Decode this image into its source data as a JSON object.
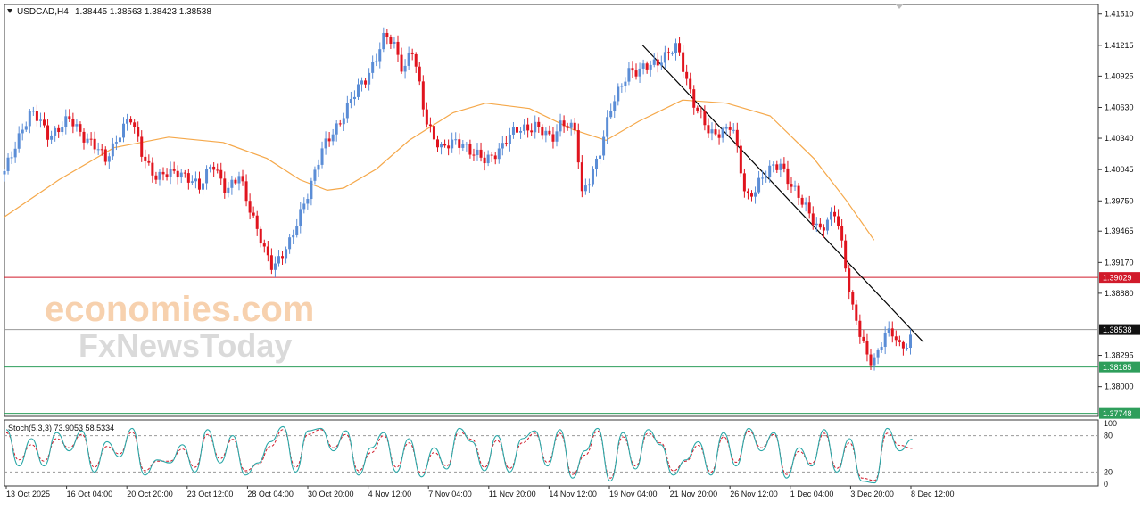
{
  "header": {
    "symbol": "USDCAD,H4",
    "ohlc": "1.38445 1.38563 1.38423 1.38538",
    "menu_icon": "triangle-down-icon"
  },
  "watermark": {
    "brand_top": "economies.com",
    "brand_bottom": "FxNewsToday"
  },
  "colors": {
    "bull": "#5b8dd6",
    "bear": "#e0141e",
    "ma": "#f5a84a",
    "trendline": "#000000",
    "resistance": "#d11a2a",
    "support": "#2e9e5b",
    "bid": "#9a9a9a",
    "stoch_main": "#2aa7a7",
    "stoch_signal": "#d11a2a"
  },
  "chart_data": [
    {
      "type": "candlestick",
      "title": "USDCAD,H4",
      "ylim": [
        1.3772,
        1.416
      ],
      "y_ticks": [
        "1.41510",
        "1.41215",
        "1.40925",
        "1.40630",
        "1.40340",
        "1.40045",
        "1.39750",
        "1.39465",
        "1.39170",
        "1.38880",
        "1.38295",
        "1.38000"
      ],
      "x_ticks": [
        "13 Oct 2025",
        "16 Oct 04:00",
        "20 Oct 20:00",
        "23 Oct 12:00",
        "28 Oct 04:00",
        "30 Oct 20:00",
        "4 Nov 12:00",
        "7 Nov 04:00",
        "11 Nov 20:00",
        "14 Nov 12:00",
        "19 Nov 04:00",
        "21 Nov 20:00",
        "26 Nov 12:00",
        "1 Dec 04:00",
        "3 Dec 20:00",
        "8 Dec 12:00"
      ],
      "price_levels": [
        {
          "value": 1.39029,
          "label": "1.39029",
          "kind": "resistance"
        },
        {
          "value": 1.38538,
          "label": "1.38538",
          "kind": "current"
        },
        {
          "value": 1.38185,
          "label": "1.38185",
          "kind": "support"
        },
        {
          "value": 1.37748,
          "label": "1.37748",
          "kind": "support"
        }
      ],
      "trendline": [
        [
          0.583,
          1.4122
        ],
        [
          0.84,
          1.3842
        ]
      ],
      "price_path": [
        [
          0.0,
          1.4
        ],
        [
          0.016,
          1.4045
        ],
        [
          0.025,
          1.4058
        ],
        [
          0.04,
          1.4038
        ],
        [
          0.06,
          1.405
        ],
        [
          0.08,
          1.403
        ],
        [
          0.092,
          1.4012
        ],
        [
          0.105,
          1.404
        ],
        [
          0.115,
          1.4052
        ],
        [
          0.125,
          1.4022
        ],
        [
          0.14,
          1.3995
        ],
        [
          0.16,
          1.4005
        ],
        [
          0.178,
          1.3985
        ],
        [
          0.19,
          1.4015
        ],
        [
          0.203,
          1.398
        ],
        [
          0.215,
          1.4002
        ],
        [
          0.228,
          1.3955
        ],
        [
          0.237,
          1.3928
        ],
        [
          0.245,
          1.3915
        ],
        [
          0.262,
          1.3935
        ],
        [
          0.275,
          1.3978
        ],
        [
          0.29,
          1.402
        ],
        [
          0.31,
          1.4058
        ],
        [
          0.33,
          1.409
        ],
        [
          0.348,
          1.413
        ],
        [
          0.358,
          1.4118
        ],
        [
          0.365,
          1.4098
        ],
        [
          0.372,
          1.4122
        ],
        [
          0.385,
          1.405
        ],
        [
          0.4,
          1.4025
        ],
        [
          0.42,
          1.403
        ],
        [
          0.44,
          1.401
        ],
        [
          0.46,
          1.4035
        ],
        [
          0.485,
          1.4048
        ],
        [
          0.5,
          1.403
        ],
        [
          0.51,
          1.4053
        ],
        [
          0.522,
          1.404
        ],
        [
          0.528,
          1.3978
        ],
        [
          0.545,
          1.4025
        ],
        [
          0.555,
          1.4062
        ],
        [
          0.57,
          1.41
        ],
        [
          0.58,
          1.4095
        ],
        [
          0.6,
          1.411
        ],
        [
          0.615,
          1.4118
        ],
        [
          0.63,
          1.407
        ],
        [
          0.645,
          1.4035
        ],
        [
          0.665,
          1.4048
        ],
        [
          0.678,
          1.3975
        ],
        [
          0.69,
          1.3995
        ],
        [
          0.71,
          1.401
        ],
        [
          0.73,
          1.397
        ],
        [
          0.745,
          1.395
        ],
        [
          0.76,
          1.3962
        ],
        [
          0.768,
          1.392
        ],
        [
          0.775,
          1.3878
        ],
        [
          0.79,
          1.382
        ],
        [
          0.798,
          1.383
        ],
        [
          0.805,
          1.3855
        ],
        [
          0.815,
          1.3845
        ],
        [
          0.82,
          1.383
        ],
        [
          0.83,
          1.3852
        ]
      ],
      "ma_path": [
        [
          0.0,
          1.396
        ],
        [
          0.05,
          1.3995
        ],
        [
          0.1,
          1.4025
        ],
        [
          0.15,
          1.4035
        ],
        [
          0.2,
          1.403
        ],
        [
          0.24,
          1.4015
        ],
        [
          0.27,
          1.3995
        ],
        [
          0.295,
          1.3985
        ],
        [
          0.31,
          1.3987
        ],
        [
          0.34,
          1.4005
        ],
        [
          0.37,
          1.4032
        ],
        [
          0.41,
          1.4058
        ],
        [
          0.44,
          1.4067
        ],
        [
          0.48,
          1.4062
        ],
        [
          0.52,
          1.4042
        ],
        [
          0.55,
          1.4032
        ],
        [
          0.58,
          1.405
        ],
        [
          0.62,
          1.407
        ],
        [
          0.66,
          1.4067
        ],
        [
          0.7,
          1.4055
        ],
        [
          0.74,
          1.4015
        ],
        [
          0.77,
          1.3975
        ],
        [
          0.795,
          1.3938
        ]
      ]
    },
    {
      "type": "line",
      "title": "Stoch(5,3,3) 73.9053 58.5334",
      "ylim": [
        0,
        100
      ],
      "y_ticks": [
        "100",
        "80",
        "20",
        "0"
      ],
      "levels": [
        80,
        20
      ],
      "series": [
        {
          "name": "Stoch main",
          "values": [
            90,
            30,
            75,
            30,
            85,
            55,
            88,
            20,
            70,
            45,
            92,
            15,
            40,
            35,
            65,
            20,
            90,
            35,
            80,
            15,
            35,
            70,
            95,
            20,
            88,
            92,
            55,
            88,
            15,
            60,
            85,
            20,
            75,
            12,
            60,
            25,
            92,
            70,
            22,
            80,
            20,
            75,
            88,
            30,
            90,
            10,
            55,
            92,
            5,
            85,
            25,
            90,
            65,
            15,
            40,
            70,
            15,
            85,
            30,
            92,
            55,
            85,
            10,
            60,
            30,
            90,
            20,
            75,
            5,
            2,
            92,
            55,
            74
          ]
        },
        {
          "name": "Stoch signal",
          "values": [
            85,
            40,
            65,
            38,
            75,
            60,
            82,
            28,
            62,
            50,
            86,
            22,
            38,
            38,
            58,
            28,
            82,
            42,
            74,
            22,
            32,
            62,
            90,
            28,
            82,
            90,
            60,
            82,
            22,
            52,
            80,
            28,
            68,
            18,
            52,
            30,
            86,
            74,
            28,
            72,
            26,
            68,
            84,
            36,
            84,
            16,
            48,
            88,
            10,
            78,
            30,
            84,
            68,
            22,
            38,
            64,
            20,
            78,
            36,
            88,
            60,
            82,
            16,
            54,
            34,
            84,
            26,
            68,
            10,
            6,
            84,
            64,
            59
          ]
        }
      ]
    }
  ]
}
